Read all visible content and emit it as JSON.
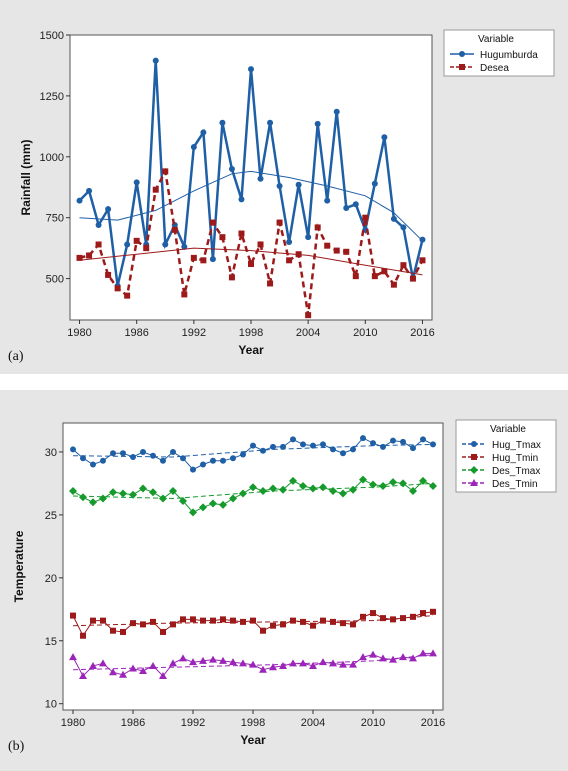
{
  "colors": {
    "panel_bg": "#e6e6e6",
    "plot_bg": "#ffffff",
    "hugumburda": "#1f5fa6",
    "desea": "#9c1a1a",
    "hug_tmax": "#1f5fa6",
    "hug_tmin": "#9c1a1a",
    "des_tmax": "#179a2c",
    "des_tmin": "#9b25b8"
  },
  "chart_data": [
    {
      "type": "line",
      "panel_label": "(a)",
      "xlabel": "Year",
      "ylabel": "Rainfall (mm)",
      "xlim": [
        1979,
        2017
      ],
      "ylim": [
        330,
        1500
      ],
      "xticks": [
        1980,
        1986,
        1992,
        1998,
        2004,
        2010,
        2016
      ],
      "yticks": [
        500,
        750,
        1000,
        1250,
        1500
      ],
      "legend": {
        "title": "Variable",
        "position": "outside-top-right"
      },
      "x": [
        1980,
        1981,
        1982,
        1983,
        1984,
        1985,
        1986,
        1987,
        1988,
        1989,
        1990,
        1991,
        1992,
        1993,
        1994,
        1995,
        1996,
        1997,
        1998,
        1999,
        2000,
        2001,
        2002,
        2003,
        2004,
        2005,
        2006,
        2007,
        2008,
        2009,
        2010,
        2011,
        2012,
        2013,
        2014,
        2015,
        2016
      ],
      "series": [
        {
          "name": "Hugumburda",
          "style": "solid",
          "marker": "circle",
          "color_key": "hugumburda",
          "values": [
            820,
            860,
            720,
            785,
            470,
            640,
            895,
            640,
            1395,
            640,
            720,
            630,
            1040,
            1100,
            580,
            1140,
            950,
            825,
            1360,
            910,
            1140,
            880,
            650,
            885,
            670,
            1135,
            820,
            1185,
            790,
            805,
            700,
            890,
            1080,
            745,
            710,
            500,
            660
          ],
          "trend": [
            [
              1980,
              750
            ],
            [
              1984,
              740
            ],
            [
              1988,
              780
            ],
            [
              1992,
              860
            ],
            [
              1996,
              930
            ],
            [
              1998,
              940
            ],
            [
              2002,
              915
            ],
            [
              2006,
              880
            ],
            [
              2010,
              840
            ],
            [
              2013,
              770
            ],
            [
              2016,
              655
            ]
          ]
        },
        {
          "name": "Desea",
          "style": "dashed",
          "marker": "square",
          "color_key": "desea",
          "values": [
            585,
            595,
            640,
            515,
            460,
            430,
            655,
            625,
            865,
            940,
            700,
            435,
            585,
            575,
            730,
            670,
            505,
            685,
            560,
            640,
            480,
            730,
            575,
            600,
            350,
            710,
            635,
            615,
            610,
            510,
            750,
            510,
            530,
            475,
            555,
            500,
            575
          ],
          "trend": [
            [
              1980,
              575
            ],
            [
              1986,
              600
            ],
            [
              1992,
              625
            ],
            [
              1998,
              615
            ],
            [
              2004,
              595
            ],
            [
              2010,
              555
            ],
            [
              2016,
              515
            ]
          ]
        }
      ]
    },
    {
      "type": "line",
      "panel_label": "(b)",
      "xlabel": "Year",
      "ylabel": "Temperature",
      "xlim": [
        1979,
        2017
      ],
      "ylim": [
        9.5,
        32.3
      ],
      "xticks": [
        1980,
        1986,
        1992,
        1998,
        2004,
        2010,
        2016
      ],
      "yticks": [
        10,
        15,
        20,
        25,
        30
      ],
      "legend": {
        "title": "Variable",
        "position": "outside-top-right"
      },
      "x": [
        1980,
        1981,
        1982,
        1983,
        1984,
        1985,
        1986,
        1987,
        1988,
        1989,
        1990,
        1991,
        1992,
        1993,
        1994,
        1995,
        1996,
        1997,
        1998,
        1999,
        2000,
        2001,
        2002,
        2003,
        2004,
        2005,
        2006,
        2007,
        2008,
        2009,
        2010,
        2011,
        2012,
        2013,
        2014,
        2015,
        2016
      ],
      "series": [
        {
          "name": "Hug_Tmax",
          "marker": "circle",
          "color_key": "hug_tmax",
          "values": [
            30.2,
            29.5,
            29.0,
            29.3,
            29.9,
            29.9,
            29.6,
            30.0,
            29.7,
            29.3,
            30.0,
            29.5,
            28.6,
            29.0,
            29.3,
            29.3,
            29.5,
            29.8,
            30.5,
            30.1,
            30.4,
            30.4,
            31.0,
            30.6,
            30.5,
            30.6,
            30.2,
            29.9,
            30.2,
            31.1,
            30.7,
            30.4,
            30.9,
            30.8,
            30.3,
            31.0,
            30.6
          ],
          "trend": [
            [
              1980,
              29.7
            ],
            [
              1990,
              29.6
            ],
            [
              2000,
              30.2
            ],
            [
              2010,
              30.5
            ],
            [
              2016,
              30.6
            ]
          ]
        },
        {
          "name": "Hug_Tmin",
          "marker": "square",
          "color_key": "hug_tmin",
          "values": [
            17.0,
            15.4,
            16.6,
            16.6,
            15.8,
            15.7,
            16.4,
            16.3,
            16.5,
            15.7,
            16.3,
            16.7,
            16.7,
            16.6,
            16.6,
            16.7,
            16.6,
            16.5,
            16.6,
            15.8,
            16.2,
            16.3,
            16.6,
            16.5,
            16.2,
            16.6,
            16.5,
            16.4,
            16.3,
            16.9,
            17.2,
            16.8,
            16.7,
            16.8,
            16.9,
            17.2,
            17.3
          ],
          "trend": [
            [
              1980,
              16.2
            ],
            [
              1990,
              16.4
            ],
            [
              2000,
              16.5
            ],
            [
              2010,
              16.6
            ],
            [
              2016,
              17.0
            ]
          ]
        },
        {
          "name": "Des_Tmax",
          "marker": "diamond",
          "color_key": "des_tmax",
          "values": [
            26.9,
            26.4,
            26.0,
            26.3,
            26.8,
            26.7,
            26.6,
            27.1,
            26.8,
            26.3,
            26.9,
            26.1,
            25.2,
            25.6,
            25.9,
            25.8,
            26.3,
            26.7,
            27.2,
            26.9,
            27.1,
            27.0,
            27.7,
            27.3,
            27.1,
            27.2,
            26.9,
            26.7,
            27.0,
            27.8,
            27.4,
            27.3,
            27.6,
            27.5,
            26.9,
            27.7,
            27.3
          ],
          "trend": [
            [
              1980,
              26.5
            ],
            [
              1990,
              26.3
            ],
            [
              2000,
              26.9
            ],
            [
              2010,
              27.2
            ],
            [
              2016,
              27.5
            ]
          ]
        },
        {
          "name": "Des_Tmin",
          "marker": "triangle",
          "color_key": "des_tmin",
          "values": [
            13.7,
            12.2,
            13.0,
            13.2,
            12.5,
            12.3,
            12.8,
            12.6,
            13.0,
            12.2,
            13.2,
            13.6,
            13.3,
            13.4,
            13.5,
            13.4,
            13.3,
            13.2,
            13.1,
            12.7,
            12.9,
            13.0,
            13.2,
            13.2,
            13.0,
            13.3,
            13.2,
            13.1,
            13.1,
            13.7,
            13.9,
            13.6,
            13.5,
            13.7,
            13.6,
            14.0,
            14.0
          ],
          "trend": [
            [
              1980,
              12.7
            ],
            [
              1990,
              12.9
            ],
            [
              2000,
              13.1
            ],
            [
              2010,
              13.4
            ],
            [
              2016,
              13.9
            ]
          ]
        }
      ]
    }
  ]
}
